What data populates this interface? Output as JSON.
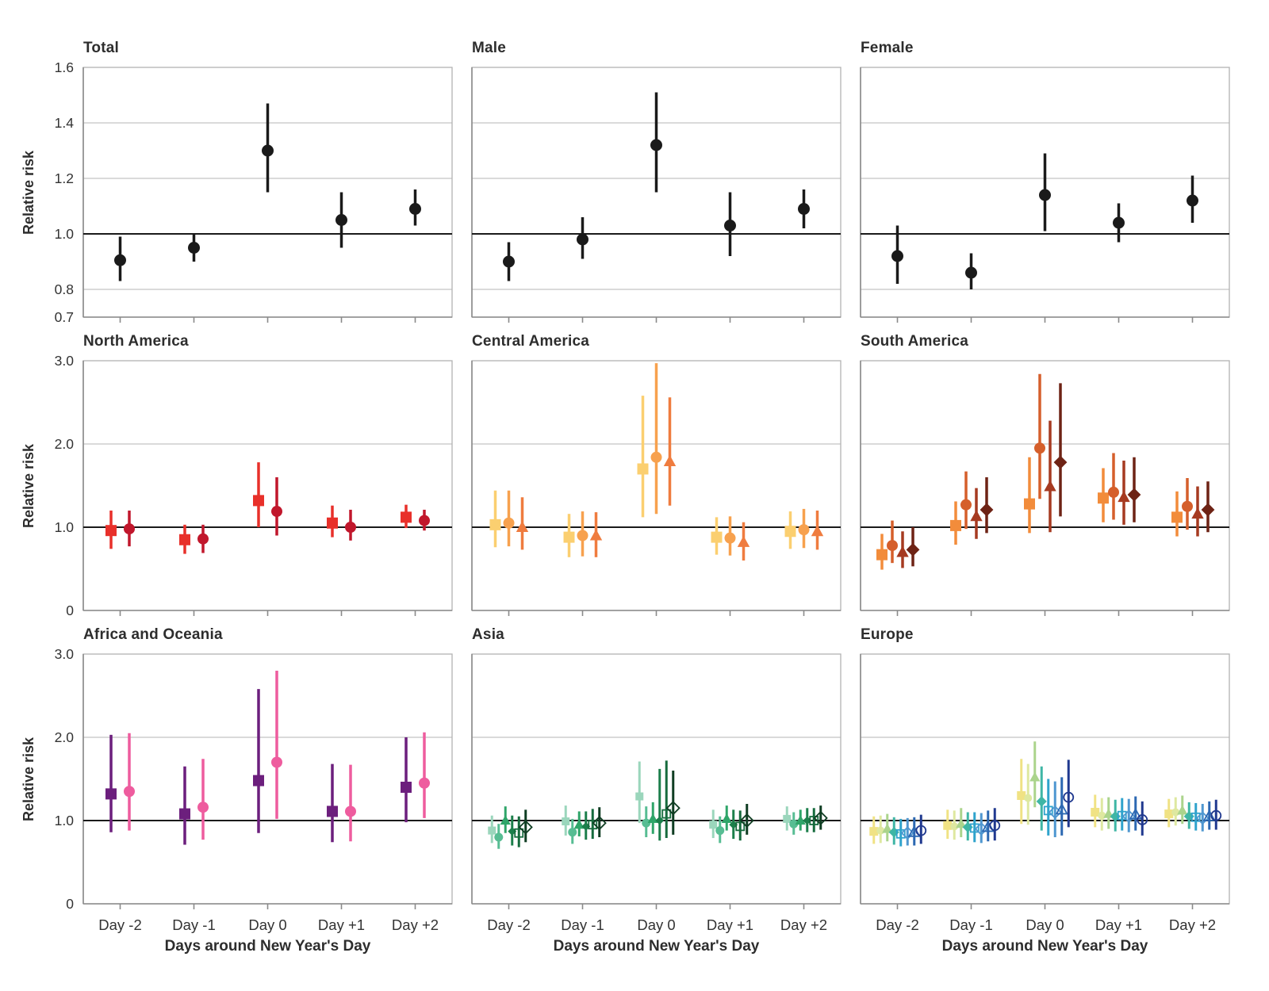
{
  "chart_data": {
    "type": "scatter",
    "subtype": "point-range-forest-grid",
    "layout": "3x3 small multiples",
    "xlabel": "Days around New Year's Day",
    "ylabel": "Relative risk",
    "categories": [
      "Day -2",
      "Day -1",
      "Day 0",
      "Day +1",
      "Day +2"
    ],
    "reference_line": 1.0,
    "grid": "horizontal gridlines on, legend none, x tick labels bottom row only, y tick labels left column only",
    "panels": [
      {
        "title": "Total",
        "ylim": [
          0.7,
          1.6
        ],
        "yticks": [
          {
            "v": 1.6,
            "l": "1.6"
          },
          {
            "v": 1.4,
            "l": "1.4"
          },
          {
            "v": 1.2,
            "l": "1.2"
          },
          {
            "v": 1.0,
            "l": "1.0"
          },
          {
            "v": 0.8,
            "l": "0.8"
          },
          {
            "v": 0.7,
            "l": "0.7"
          }
        ],
        "gridlines": [
          0.8,
          1.2,
          1.4
        ],
        "series": [
          {
            "marker": "circle",
            "fill": "solid",
            "color": "#1a1a1a",
            "rr": [
              0.905,
              0.95,
              1.3,
              1.05,
              1.09
            ],
            "lo": [
              0.83,
              0.9,
              1.15,
              0.95,
              1.03
            ],
            "hi": [
              0.99,
              1.0,
              1.47,
              1.15,
              1.16
            ]
          }
        ]
      },
      {
        "title": "Male",
        "ylim": [
          0.7,
          1.6
        ],
        "yticks": [],
        "gridlines": [
          0.8,
          1.2,
          1.4
        ],
        "series": [
          {
            "marker": "circle",
            "fill": "solid",
            "color": "#1a1a1a",
            "rr": [
              0.9,
              0.98,
              1.32,
              1.03,
              1.09
            ],
            "lo": [
              0.83,
              0.91,
              1.15,
              0.92,
              1.02
            ],
            "hi": [
              0.97,
              1.06,
              1.51,
              1.15,
              1.16
            ]
          }
        ]
      },
      {
        "title": "Female",
        "ylim": [
          0.7,
          1.6
        ],
        "yticks": [],
        "gridlines": [
          0.8,
          1.2,
          1.4
        ],
        "series": [
          {
            "marker": "circle",
            "fill": "solid",
            "color": "#1a1a1a",
            "rr": [
              0.92,
              0.86,
              1.14,
              1.04,
              1.12
            ],
            "lo": [
              0.82,
              0.8,
              1.01,
              0.97,
              1.04
            ],
            "hi": [
              1.03,
              0.93,
              1.29,
              1.11,
              1.21
            ]
          }
        ]
      },
      {
        "title": "North America",
        "ylim": [
          0,
          3.0
        ],
        "yticks": [
          {
            "v": 3.0,
            "l": "3.0"
          },
          {
            "v": 2.0,
            "l": "2.0"
          },
          {
            "v": 1.0,
            "l": "1.0"
          },
          {
            "v": 0,
            "l": "0"
          }
        ],
        "gridlines": [
          2.0
        ],
        "series": [
          {
            "marker": "square",
            "fill": "solid",
            "color": "#e8302a",
            "rr": [
              0.96,
              0.85,
              1.32,
              1.05,
              1.12
            ],
            "lo": [
              0.74,
              0.68,
              1.0,
              0.88,
              0.99
            ],
            "hi": [
              1.2,
              1.03,
              1.78,
              1.26,
              1.27
            ]
          },
          {
            "marker": "circle",
            "fill": "solid",
            "color": "#c1172c",
            "rr": [
              0.98,
              0.86,
              1.19,
              1.0,
              1.08
            ],
            "lo": [
              0.77,
              0.69,
              0.9,
              0.84,
              0.96
            ],
            "hi": [
              1.2,
              1.03,
              1.6,
              1.21,
              1.21
            ]
          }
        ]
      },
      {
        "title": "Central America",
        "ylim": [
          0,
          3.0
        ],
        "yticks": [],
        "gridlines": [
          2.0
        ],
        "series": [
          {
            "marker": "square",
            "fill": "solid",
            "color": "#fbcf70",
            "rr": [
              1.03,
              0.88,
              1.7,
              0.88,
              0.95
            ],
            "lo": [
              0.76,
              0.64,
              1.12,
              0.67,
              0.74
            ],
            "hi": [
              1.44,
              1.16,
              2.58,
              1.12,
              1.19
            ]
          },
          {
            "marker": "circle",
            "fill": "solid",
            "color": "#f7a14e",
            "rr": [
              1.05,
              0.9,
              1.84,
              0.87,
              0.97
            ],
            "lo": [
              0.77,
              0.65,
              1.16,
              0.66,
              0.75
            ],
            "hi": [
              1.44,
              1.19,
              2.97,
              1.13,
              1.22
            ]
          },
          {
            "marker": "triangle",
            "fill": "solid",
            "color": "#ef7c3f",
            "rr": [
              1.0,
              0.9,
              1.79,
              0.82,
              0.95
            ],
            "lo": [
              0.73,
              0.64,
              1.26,
              0.6,
              0.73
            ],
            "hi": [
              1.36,
              1.18,
              2.56,
              1.06,
              1.2
            ]
          }
        ]
      },
      {
        "title": "South America",
        "ylim": [
          0,
          3.0
        ],
        "yticks": [],
        "gridlines": [
          2.0
        ],
        "series": [
          {
            "marker": "square",
            "fill": "solid",
            "color": "#f28c3b",
            "rr": [
              0.67,
              1.02,
              1.28,
              1.35,
              1.12
            ],
            "lo": [
              0.49,
              0.79,
              0.93,
              1.06,
              0.89
            ],
            "hi": [
              0.92,
              1.31,
              1.84,
              1.71,
              1.43
            ]
          },
          {
            "marker": "circle",
            "fill": "solid",
            "color": "#d55f2b",
            "rr": [
              0.78,
              1.27,
              1.95,
              1.42,
              1.25
            ],
            "lo": [
              0.57,
              0.98,
              1.34,
              1.09,
              0.97
            ],
            "hi": [
              1.08,
              1.67,
              2.84,
              1.89,
              1.59
            ]
          },
          {
            "marker": "triangle",
            "fill": "solid",
            "color": "#a63a21",
            "rr": [
              0.7,
              1.13,
              1.49,
              1.36,
              1.16
            ],
            "lo": [
              0.51,
              0.86,
              0.94,
              1.03,
              0.89
            ],
            "hi": [
              0.95,
              1.47,
              2.28,
              1.8,
              1.49
            ]
          },
          {
            "marker": "diamond",
            "fill": "solid",
            "color": "#6e2315",
            "rr": [
              0.73,
              1.21,
              1.78,
              1.39,
              1.21
            ],
            "lo": [
              0.53,
              0.93,
              1.13,
              1.06,
              0.94
            ],
            "hi": [
              1.0,
              1.6,
              2.73,
              1.84,
              1.55
            ]
          }
        ]
      },
      {
        "title": "Africa and Oceania",
        "ylim": [
          0,
          3.0
        ],
        "yticks": [
          {
            "v": 3.0,
            "l": "3.0"
          },
          {
            "v": 2.0,
            "l": "2.0"
          },
          {
            "v": 1.0,
            "l": "1.0"
          },
          {
            "v": 0,
            "l": "0"
          }
        ],
        "gridlines": [
          2.0
        ],
        "series": [
          {
            "marker": "square",
            "fill": "solid",
            "color": "#6c1f7d",
            "rr": [
              1.32,
              1.08,
              1.48,
              1.11,
              1.4
            ],
            "lo": [
              0.86,
              0.71,
              0.85,
              0.74,
              0.98
            ],
            "hi": [
              2.03,
              1.65,
              2.58,
              1.68,
              2.0
            ]
          },
          {
            "marker": "circle",
            "fill": "solid",
            "color": "#ee5c9e",
            "rr": [
              1.35,
              1.16,
              1.7,
              1.11,
              1.45
            ],
            "lo": [
              0.88,
              0.77,
              1.02,
              0.75,
              1.03
            ],
            "hi": [
              2.05,
              1.74,
              2.8,
              1.67,
              2.06
            ]
          }
        ]
      },
      {
        "title": "Asia",
        "ylim": [
          0,
          3.0
        ],
        "yticks": [],
        "gridlines": [
          2.0
        ],
        "series": [
          {
            "marker": "square",
            "fill": "solid",
            "color": "#9bd6bc",
            "sz": 5,
            "rr": [
              0.88,
              0.99,
              1.29,
              0.95,
              1.02
            ],
            "lo": [
              0.73,
              0.82,
              0.97,
              0.79,
              0.88
            ],
            "hi": [
              1.06,
              1.18,
              1.71,
              1.13,
              1.17
            ]
          },
          {
            "marker": "circle",
            "fill": "solid",
            "color": "#57bd93",
            "sz": 5.5,
            "rr": [
              0.8,
              0.86,
              0.97,
              0.88,
              0.96
            ],
            "lo": [
              0.66,
              0.72,
              0.8,
              0.73,
              0.83
            ],
            "hi": [
              0.96,
              1.02,
              1.17,
              1.05,
              1.1
            ]
          },
          {
            "marker": "triangle",
            "fill": "solid",
            "color": "#2fa569",
            "sz": 6,
            "rr": [
              1.0,
              0.95,
              1.02,
              1.02,
              1.0
            ],
            "lo": [
              0.85,
              0.81,
              0.84,
              0.88,
              0.88
            ],
            "hi": [
              1.17,
              1.11,
              1.22,
              1.18,
              1.13
            ]
          },
          {
            "marker": "diamond",
            "fill": "solid",
            "color": "#1c7f4b",
            "sz": 4.5,
            "rr": [
              0.87,
              0.93,
              1.0,
              0.95,
              1.0
            ],
            "lo": [
              0.7,
              0.77,
              0.76,
              0.78,
              0.86
            ],
            "hi": [
              1.06,
              1.11,
              1.62,
              1.13,
              1.15
            ]
          },
          {
            "marker": "square",
            "fill": "open",
            "color": "#166b3d",
            "sz": 5,
            "rr": [
              0.85,
              0.95,
              1.08,
              0.93,
              1.0
            ],
            "lo": [
              0.68,
              0.78,
              0.79,
              0.76,
              0.86
            ],
            "hi": [
              1.05,
              1.14,
              1.72,
              1.12,
              1.15
            ]
          },
          {
            "marker": "diamond",
            "fill": "open",
            "color": "#0f3d22",
            "sz": 6.5,
            "rr": [
              0.92,
              0.97,
              1.15,
              1.0,
              1.03
            ],
            "lo": [
              0.74,
              0.8,
              0.83,
              0.83,
              0.89
            ],
            "hi": [
              1.13,
              1.16,
              1.6,
              1.2,
              1.18
            ]
          }
        ]
      },
      {
        "title": "Europe",
        "ylim": [
          0,
          3.0
        ],
        "yticks": [],
        "gridlines": [
          2.0
        ],
        "series": [
          {
            "marker": "square",
            "fill": "solid",
            "color": "#f0e284",
            "sz": 5.5,
            "rr": [
              0.87,
              0.94,
              1.3,
              1.1,
              1.08
            ],
            "lo": [
              0.72,
              0.78,
              0.96,
              0.92,
              0.92
            ],
            "hi": [
              1.05,
              1.13,
              1.74,
              1.31,
              1.26
            ]
          },
          {
            "marker": "circle",
            "fill": "solid",
            "color": "#dee8a0",
            "sz": 5,
            "rr": [
              0.88,
              0.93,
              1.27,
              1.06,
              1.1
            ],
            "lo": [
              0.73,
              0.77,
              0.95,
              0.88,
              0.94
            ],
            "hi": [
              1.06,
              1.12,
              1.68,
              1.27,
              1.28
            ]
          },
          {
            "marker": "triangle",
            "fill": "solid",
            "color": "#abd48c",
            "sz": 6,
            "rr": [
              0.9,
              0.96,
              1.52,
              1.08,
              1.12
            ],
            "lo": [
              0.75,
              0.8,
              1.16,
              0.9,
              0.96
            ],
            "hi": [
              1.08,
              1.15,
              1.95,
              1.28,
              1.3
            ]
          },
          {
            "marker": "diamond",
            "fill": "solid",
            "color": "#3fb6a5",
            "sz": 5.5,
            "rr": [
              0.86,
              0.92,
              1.23,
              1.05,
              1.05
            ],
            "lo": [
              0.71,
              0.76,
              0.88,
              0.87,
              0.9
            ],
            "hi": [
              1.04,
              1.1,
              1.65,
              1.25,
              1.22
            ]
          },
          {
            "marker": "square",
            "fill": "open",
            "color": "#2fa3cc",
            "sz": 5,
            "rr": [
              0.84,
              0.91,
              1.12,
              1.06,
              1.04
            ],
            "lo": [
              0.69,
              0.74,
              0.82,
              0.88,
              0.88
            ],
            "hi": [
              1.02,
              1.1,
              1.5,
              1.27,
              1.21
            ]
          },
          {
            "marker": "diamond",
            "fill": "open",
            "color": "#4f97d0",
            "sz": 6,
            "rr": [
              0.85,
              0.9,
              1.1,
              1.05,
              1.03
            ],
            "lo": [
              0.7,
              0.73,
              0.8,
              0.86,
              0.87
            ],
            "hi": [
              1.03,
              1.09,
              1.47,
              1.26,
              1.2
            ]
          },
          {
            "marker": "triangle",
            "fill": "open",
            "color": "#2c68b2",
            "sz": 6,
            "rr": [
              0.86,
              0.92,
              1.13,
              1.07,
              1.05
            ],
            "lo": [
              0.7,
              0.75,
              0.82,
              0.88,
              0.89
            ],
            "hi": [
              1.04,
              1.12,
              1.52,
              1.29,
              1.23
            ]
          },
          {
            "marker": "circle",
            "fill": "open",
            "color": "#20398f",
            "sz": 6,
            "rr": [
              0.88,
              0.94,
              1.28,
              1.01,
              1.06
            ],
            "lo": [
              0.72,
              0.76,
              0.92,
              0.82,
              0.89
            ],
            "hi": [
              1.07,
              1.15,
              1.73,
              1.23,
              1.25
            ]
          }
        ]
      }
    ]
  }
}
